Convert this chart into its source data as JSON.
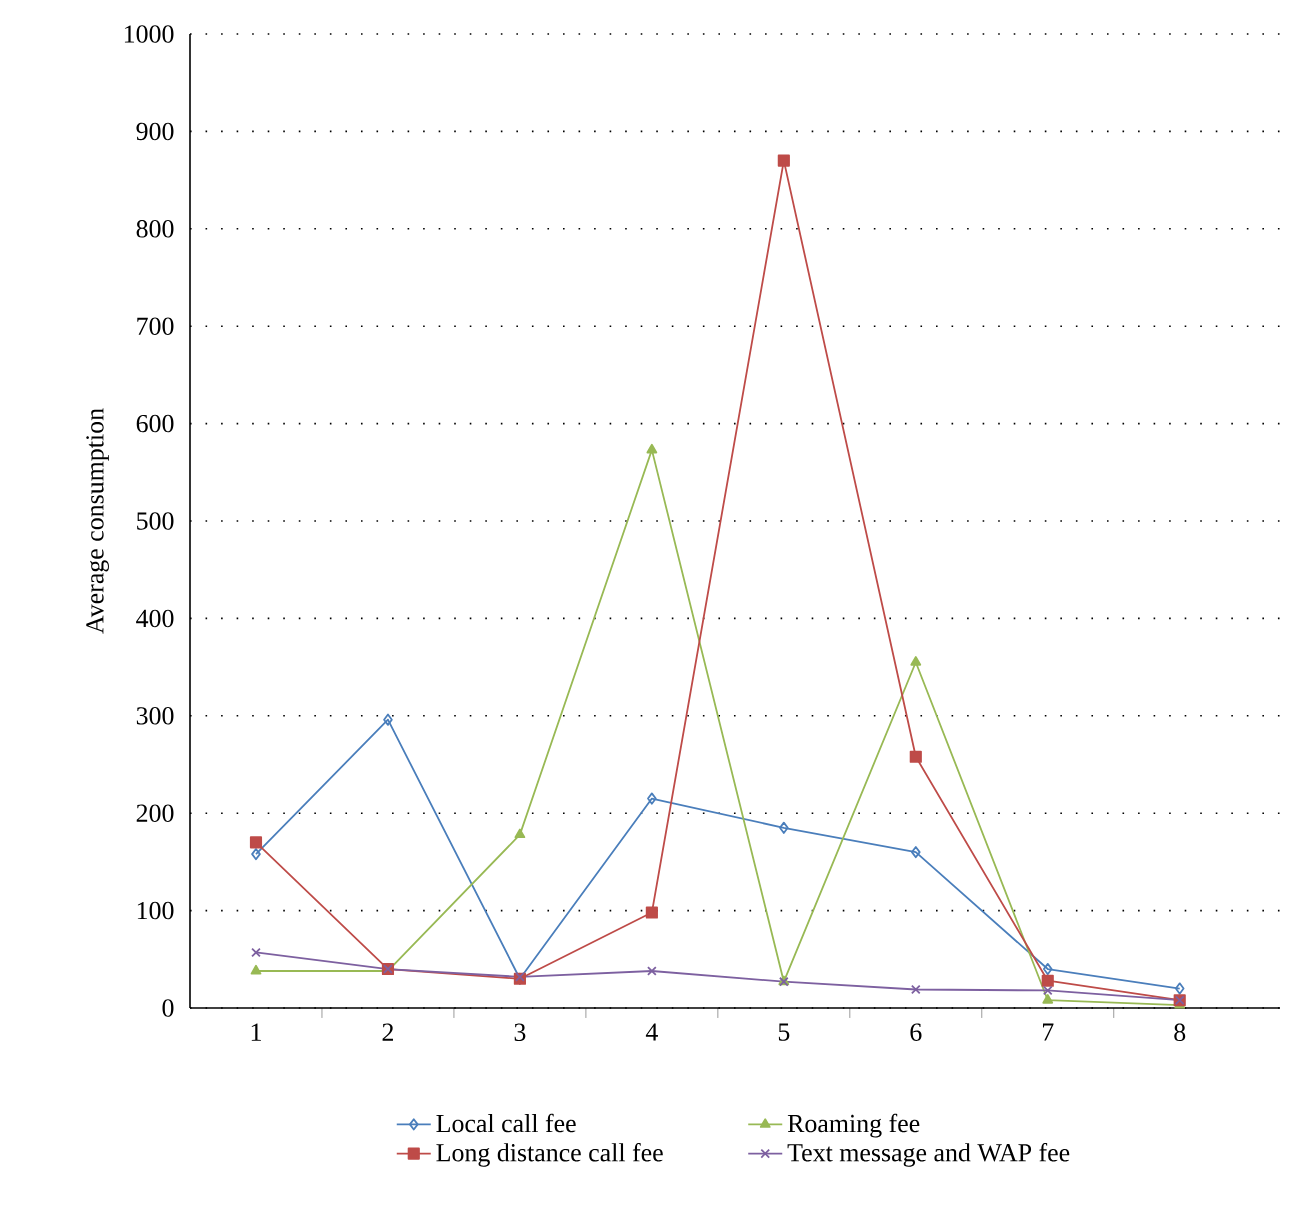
{
  "chart_data": {
    "type": "line",
    "ylabel": "Average consumption",
    "categories": [
      "1",
      "2",
      "3",
      "4",
      "5",
      "6",
      "7",
      "8"
    ],
    "series": [
      {
        "name": "Local call fee",
        "color": "#4a7ebb",
        "marker": "diamond",
        "values": [
          158,
          296,
          30,
          215,
          185,
          160,
          40,
          20
        ]
      },
      {
        "name": "Long distance call fee",
        "color": "#be4b48",
        "marker": "square",
        "values": [
          170,
          40,
          30,
          98,
          870,
          258,
          28,
          8
        ]
      },
      {
        "name": "Roaming fee",
        "color": "#98b954",
        "marker": "triangle",
        "values": [
          38,
          38,
          178,
          573,
          27,
          355,
          8,
          3
        ]
      },
      {
        "name": "Text message and WAP fee",
        "color": "#7d60a0",
        "marker": "cross",
        "values": [
          57,
          40,
          32,
          38,
          27,
          19,
          18,
          8
        ]
      }
    ],
    "ylim": [
      0,
      1000
    ],
    "yticks": [
      0,
      100,
      200,
      300,
      400,
      500,
      600,
      700,
      800,
      900,
      1000
    ],
    "grid": "y",
    "legend": "bottom",
    "line_style": "solid"
  }
}
